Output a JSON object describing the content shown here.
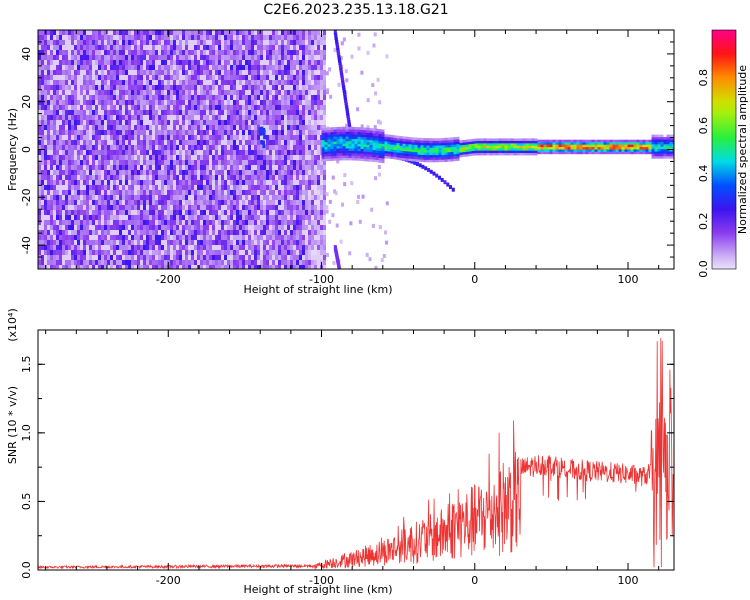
{
  "title": "C2E6.2023.235.13.18.G21",
  "chart_data": [
    {
      "type": "heatmap",
      "xlabel": "Height of straight line (km)",
      "ylabel": "Frequency (Hz)",
      "xlim": [
        -285,
        130
      ],
      "ylim": [
        -50,
        50
      ],
      "xticks": [
        -200,
        -100,
        0,
        100
      ],
      "yticks": [
        -40,
        -20,
        0,
        20,
        40
      ],
      "colorbar": {
        "label": "Normalized spectral amplitude",
        "ticks": [
          0.0,
          0.2,
          0.4,
          0.6,
          0.8
        ],
        "tick_labels": [
          "0.0",
          "0.2",
          "0.4",
          "0.6",
          "0.8"
        ],
        "range": [
          0,
          1
        ],
        "colormap": "rainbow"
      },
      "features": [
        {
          "name": "noise",
          "x_range": [
            -285,
            -98
          ],
          "y_range": [
            -50,
            50
          ],
          "amplitude": 0.15
        },
        {
          "name": "main-tone",
          "x_range": [
            -100,
            130
          ],
          "frequency": 1,
          "peak_amplitude": 0.9
        },
        {
          "name": "sweep",
          "x_start": -92,
          "y_start": 50,
          "x_end": -82,
          "y_end": 8
        }
      ]
    },
    {
      "type": "line",
      "xlabel": "Height of straight line (km)",
      "ylabel": "SNR (10 * v/v)",
      "y_multiplier": "(x10⁴)",
      "xlim": [
        -285,
        130
      ],
      "ylim": [
        0,
        1.75
      ],
      "xticks": [
        -200,
        -100,
        0,
        100
      ],
      "yticks": [
        0.0,
        0.5,
        1.0,
        1.5
      ],
      "ytick_labels": [
        "0.0",
        "0.5",
        "1.0",
        "1.5"
      ],
      "color": "#ee3333",
      "envelope": {
        "x": [
          -285,
          -200,
          -105,
          -100,
          -80,
          -60,
          -40,
          -20,
          -10,
          0,
          10,
          20,
          30,
          40,
          50,
          60,
          80,
          100,
          110,
          120,
          125,
          130
        ],
        "y": [
          0.02,
          0.025,
          0.03,
          0.06,
          0.12,
          0.2,
          0.3,
          0.4,
          0.5,
          0.55,
          0.63,
          0.72,
          0.8,
          0.83,
          0.84,
          0.8,
          0.78,
          0.76,
          0.74,
          0.8,
          0.95,
          0.9
        ]
      }
    }
  ]
}
